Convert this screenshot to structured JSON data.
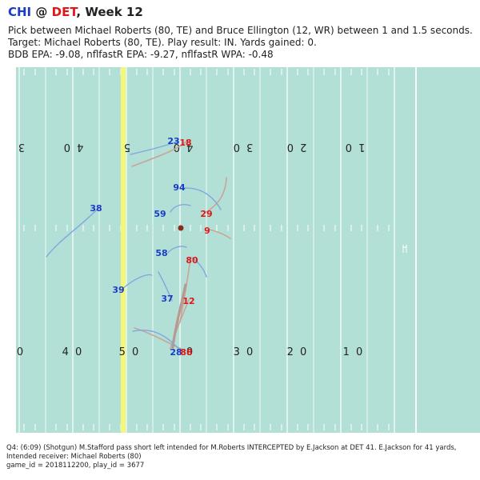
{
  "title": {
    "away": "CHI",
    "at": "@",
    "home": "DET",
    "week": ", Week 12"
  },
  "subtitle": [
    "Pick between Michael Roberts (80, TE) and Bruce Ellington (12, WR) between 1 and 1.5 seconds.",
    "Target: Michael Roberts (80, TE). Play result: IN. Yards gained: 0.",
    "BDB EPA: -9.08, nflfastR EPA: -9.27, nflfastR WPA: -0.48"
  ],
  "field": {
    "turf_color": "#b3e0d6",
    "line_color": "#ffffff",
    "scrimmage_color": "#f3f877",
    "top_yard_numbers": [
      "3",
      "4 0",
      "5",
      "4 0",
      "3 0",
      "2 0",
      "1 0"
    ],
    "bottom_yard_numbers": [
      "0",
      "4 0",
      "5 0",
      "0",
      "3 0",
      "2 0",
      "1 0"
    ]
  },
  "offense_color": "#1a3cc8",
  "defense_color": "#e01818",
  "players": {
    "offense": [
      "23",
      "94",
      "38",
      "59",
      "58",
      "39",
      "37",
      "28"
    ],
    "defense": [
      "18",
      "29",
      "9",
      "80",
      "12",
      "88"
    ]
  },
  "caption": [
    "Q4: (6:09) (Shotgun) M.Stafford pass short left intended for M.Roberts INTERCEPTED by E.Jackson at DET 41. E.Jackson for 41 yards,",
    "Intended receiver: Michael Roberts (80)",
    "game_id = 2018112200, play_id = 3677"
  ]
}
